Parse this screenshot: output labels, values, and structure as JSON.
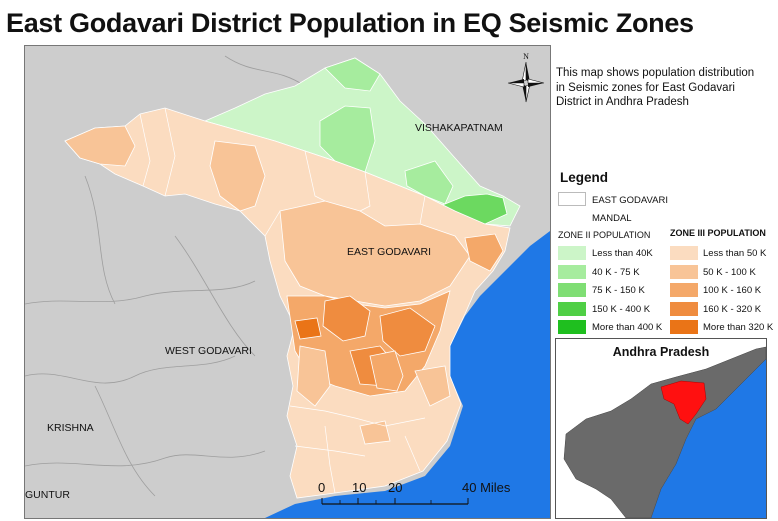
{
  "title": "East Godavari District Population in EQ Seismic Zones",
  "description": "This map shows population distribution in Seismic zones for East Godavari District in Andhra Pradesh",
  "north_arrow": {
    "label": "N"
  },
  "map_labels": {
    "vishakapatnam": "VISHAKAPATNAM",
    "east_godavari": "EAST GODAVARI",
    "west_godavari": "WEST GODAVARI",
    "krishna": "KRISHNA",
    "guntur": "GUNTUR"
  },
  "legend": {
    "title": "Legend",
    "district_label": "EAST GODAVARI",
    "mandal_label": "MANDAL",
    "zone2_title": "ZONE II POPULATION",
    "zone3_title": "ZONE III POPULATION",
    "zone2": [
      {
        "label": "Less than 40K",
        "color": "#ccf5c8"
      },
      {
        "label": "40 K - 75 K",
        "color": "#a6ec9e"
      },
      {
        "label": "75 K - 150 K",
        "color": "#7fde74"
      },
      {
        "label": "150 K - 400 K",
        "color": "#4fcf45"
      },
      {
        "label": "More than 400 K",
        "color": "#1fbf1f"
      }
    ],
    "zone3": [
      {
        "label": "Less than 50 K",
        "color": "#fbdcc0"
      },
      {
        "label": "50 K - 100 K",
        "color": "#f8c497"
      },
      {
        "label": "100 K - 160 K",
        "color": "#f4a869"
      },
      {
        "label": "160 K - 320 K",
        "color": "#ef8c3f"
      },
      {
        "label": "More than 320 K",
        "color": "#ea7417"
      }
    ]
  },
  "inset": {
    "title": "Andhra Pradesh"
  },
  "scale_bar": {
    "ticks": [
      "0",
      "10",
      "20",
      "40 Miles"
    ]
  },
  "colors": {
    "sea": "#1f78e6",
    "land": "#cdcdcd",
    "highlight": "#ff1010",
    "inset_land": "#6a6a6a"
  }
}
